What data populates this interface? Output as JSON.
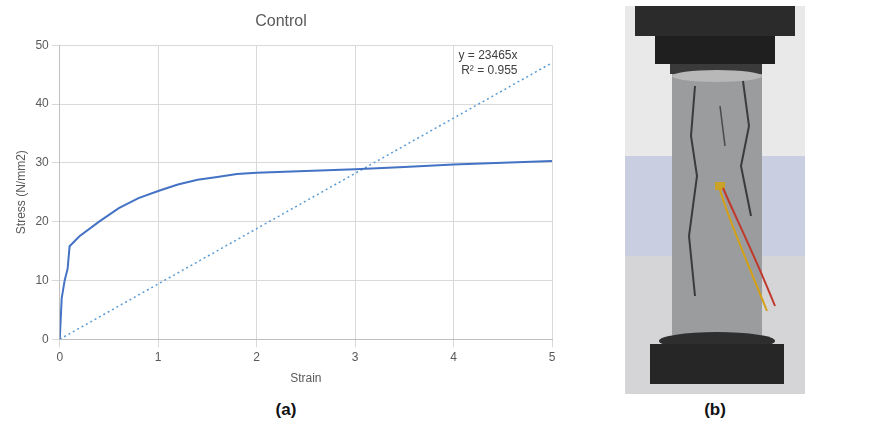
{
  "chart_data": {
    "type": "line",
    "title": "Control",
    "panel_label": "(a)",
    "x_label": "Strain",
    "y_label": "Stress (N/mm2)",
    "xlim": [
      0,
      5
    ],
    "xticks": [
      0,
      1,
      2,
      3,
      4,
      5
    ],
    "ylim": [
      0,
      50
    ],
    "yticks": [
      0,
      10,
      20,
      30,
      40,
      50
    ],
    "grid": true,
    "annotations": [
      "y = 23465x",
      "R² = 0.955"
    ],
    "series": [
      {
        "color": "#4472c4",
        "line_style": "solid",
        "marker": "none",
        "x": [
          0,
          0.02,
          0.05,
          0.08,
          0.1,
          0.2,
          0.4,
          0.6,
          0.8,
          1,
          1.2,
          1.4,
          1.6,
          1.8,
          2,
          2.5,
          3,
          3.5,
          4,
          4.5,
          5
        ],
        "values": [
          0,
          7,
          10,
          12,
          15.8,
          17.5,
          20,
          22.3,
          24,
          25.2,
          26.3,
          27.1,
          27.6,
          28.1,
          28.3,
          28.6,
          28.9,
          29.3,
          29.7,
          30,
          30.3
        ]
      },
      {
        "color": "#5b9bd5",
        "line_style": "dotted",
        "marker": "none",
        "x": [
          0,
          5
        ],
        "values": [
          0,
          47
        ]
      }
    ]
  },
  "photo": {
    "panel_label": "(b)"
  }
}
